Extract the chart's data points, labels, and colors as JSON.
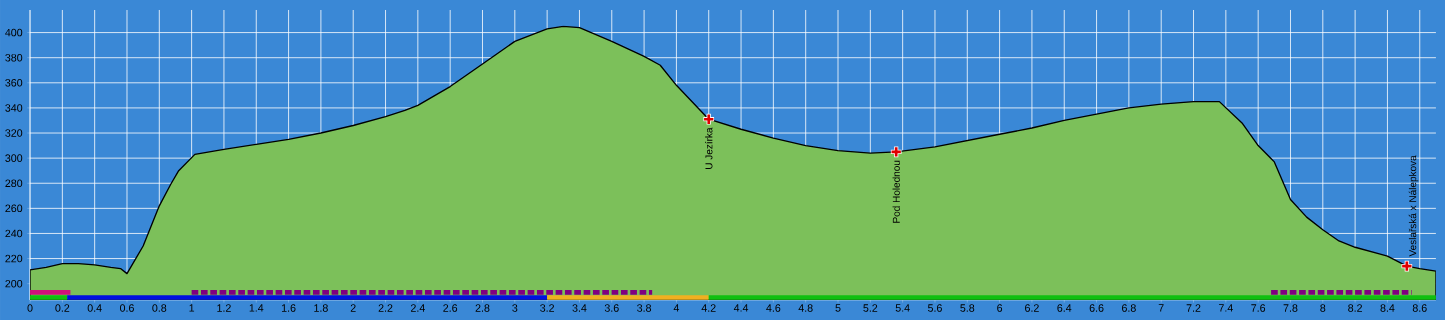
{
  "chart_data": {
    "type": "area",
    "x": [
      0,
      0.1,
      0.2,
      0.3,
      0.4,
      0.5,
      0.56,
      0.6,
      0.7,
      0.8,
      0.87,
      0.92,
      1.02,
      1.2,
      1.4,
      1.6,
      1.8,
      2.0,
      2.2,
      2.32,
      2.4,
      2.6,
      2.8,
      3.0,
      3.2,
      3.3,
      3.4,
      3.6,
      3.8,
      3.9,
      4.0,
      4.2,
      4.4,
      4.6,
      4.8,
      5.0,
      5.2,
      5.36,
      5.6,
      5.8,
      6.0,
      6.2,
      6.4,
      6.6,
      6.8,
      7.0,
      7.2,
      7.36,
      7.5,
      7.6,
      7.7,
      7.8,
      7.9,
      8.0,
      8.1,
      8.2,
      8.4,
      8.52,
      8.6,
      8.7
    ],
    "series": [
      {
        "color": "#7cc05a",
        "values": [
          211,
          213,
          216,
          216,
          215,
          213,
          212,
          208,
          230,
          262,
          279,
          290,
          303,
          307,
          311,
          315,
          320,
          326,
          333,
          338,
          342,
          357,
          375,
          393,
          403,
          405,
          404,
          393,
          381,
          374,
          358,
          331,
          323,
          316,
          310,
          306,
          304,
          305,
          309,
          314,
          319,
          324,
          330,
          335,
          340,
          343,
          345,
          345,
          328,
          310,
          297,
          267,
          253,
          243,
          234,
          229,
          222,
          214,
          212,
          210
        ]
      },
      {
        "type": "line",
        "color": "#10c010",
        "x": [
          0,
          0.23
        ],
        "values": [
          189,
          189
        ]
      },
      {
        "type": "line",
        "color": "#0010e0",
        "x": [
          0.23,
          3.2
        ],
        "values": [
          189,
          189
        ]
      },
      {
        "type": "line",
        "color": "#f0b020",
        "x": [
          3.2,
          4.2
        ],
        "values": [
          189,
          189
        ]
      },
      {
        "type": "line",
        "color": "#10c010",
        "x": [
          4.2,
          8.7
        ],
        "values": [
          189,
          189
        ]
      },
      {
        "type": "line",
        "color": "#d0107a",
        "x": [
          0,
          0.25
        ],
        "values": [
          193,
          193
        ]
      },
      {
        "type": "line",
        "color": "#800080",
        "x": [
          1.0,
          3.85
        ],
        "values": [
          193,
          193
        ],
        "line_style": "dashed"
      },
      {
        "type": "line",
        "color": "#800080",
        "x": [
          7.68,
          8.55
        ],
        "values": [
          193,
          193
        ],
        "line_style": "dashed"
      }
    ],
    "xlim": [
      0,
      8.7
    ],
    "ylim": [
      187,
      418
    ],
    "xticks": [
      0,
      0.2,
      0.4,
      0.6,
      0.8,
      1,
      1.2,
      1.4,
      1.6,
      1.8,
      2,
      2.2,
      2.4,
      2.6,
      2.8,
      3,
      3.2,
      3.4,
      3.6,
      3.8,
      4,
      4.2,
      4.4,
      4.6,
      4.8,
      5,
      5.2,
      5.4,
      5.6,
      5.8,
      6,
      6.2,
      6.4,
      6.6,
      6.8,
      7,
      7.2,
      7.4,
      7.6,
      7.8,
      8,
      8.2,
      8.4,
      8.6
    ],
    "yticks": [
      200,
      220,
      240,
      260,
      280,
      300,
      320,
      340,
      360,
      380,
      400
    ],
    "grid": true,
    "annotations": [
      {
        "text": "U Jezírka",
        "x": 4.2,
        "y": 331
      },
      {
        "text": "Pod Holednou",
        "x": 5.36,
        "y": 305
      },
      {
        "text": "Veslařská x Nálepkova",
        "x": 8.52,
        "y": 214
      }
    ]
  }
}
